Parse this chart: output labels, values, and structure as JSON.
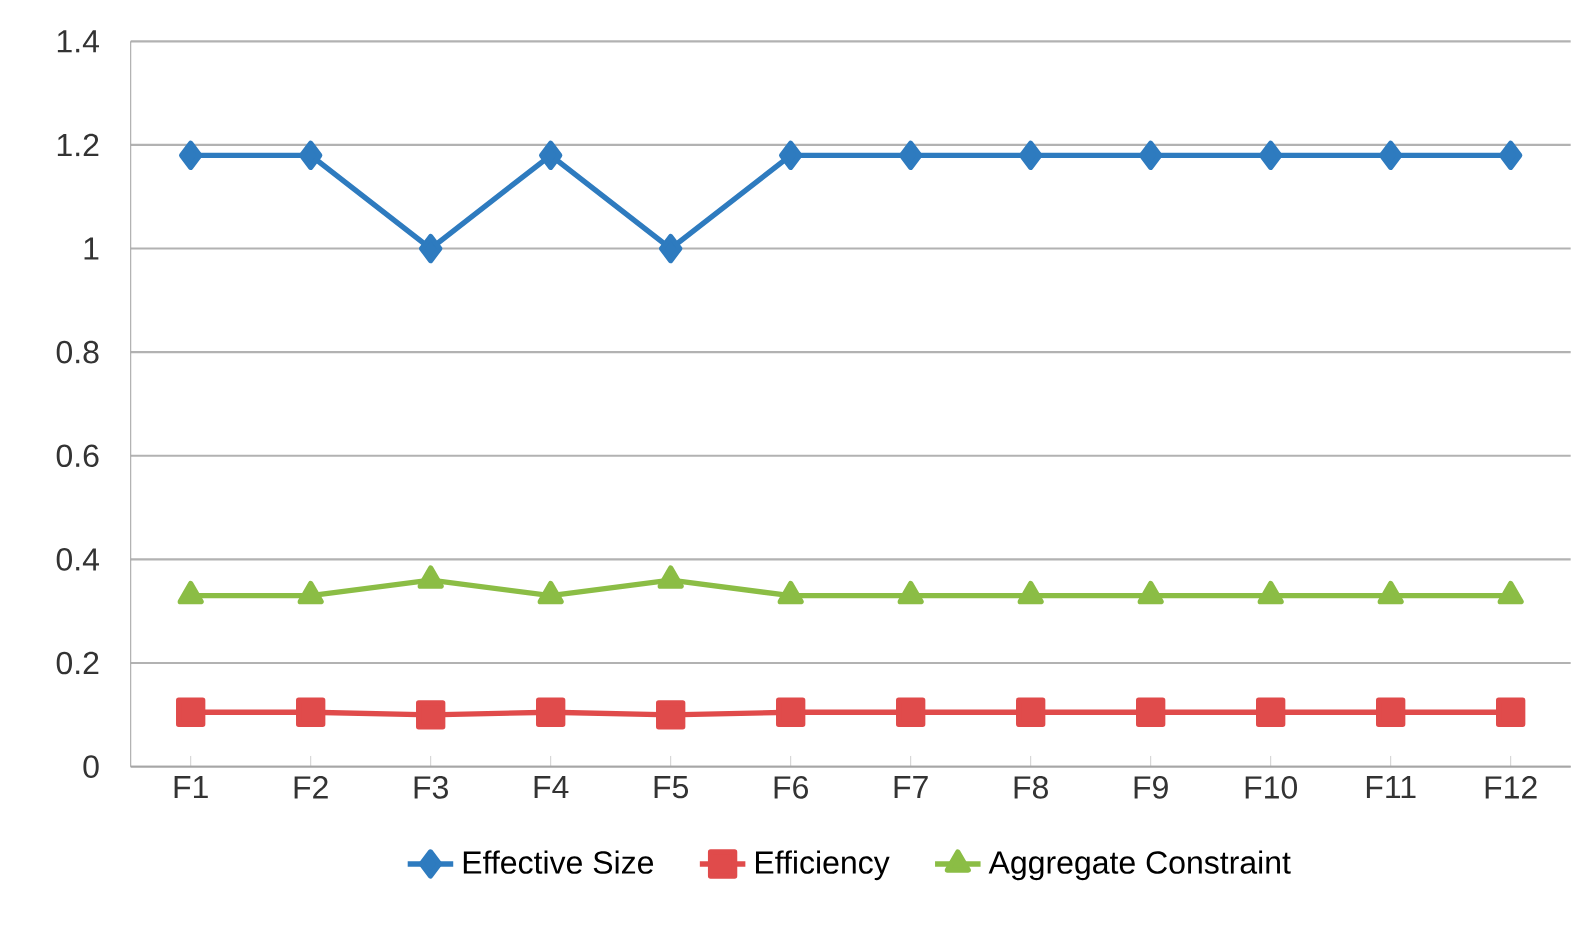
{
  "chart_data": {
    "type": "line",
    "categories": [
      "F1",
      "F2",
      "F3",
      "F4",
      "F5",
      "F6",
      "F7",
      "F8",
      "F9",
      "F10",
      "F11",
      "F12"
    ],
    "series": [
      {
        "name": "Effective Size",
        "color": "#2e7bbf",
        "marker": "diamond",
        "values": [
          1.18,
          1.18,
          1.0,
          1.18,
          1.0,
          1.18,
          1.18,
          1.18,
          1.18,
          1.18,
          1.18,
          1.18
        ]
      },
      {
        "name": "Efficiency",
        "color": "#e04b4b",
        "marker": "square",
        "values": [
          0.105,
          0.105,
          0.1,
          0.105,
          0.1,
          0.105,
          0.105,
          0.105,
          0.105,
          0.105,
          0.105,
          0.105
        ]
      },
      {
        "name": "Aggregate Constraint",
        "color": "#8bbd45",
        "marker": "triangle",
        "values": [
          0.33,
          0.33,
          0.36,
          0.33,
          0.36,
          0.33,
          0.33,
          0.33,
          0.33,
          0.33,
          0.33,
          0.33
        ]
      }
    ],
    "ylim": [
      0,
      1.4
    ],
    "yticks": [
      0,
      0.2,
      0.4,
      0.6,
      0.8,
      1,
      1.2,
      1.4
    ],
    "grid": "y",
    "legend": "bottom",
    "line_style": "solid"
  }
}
